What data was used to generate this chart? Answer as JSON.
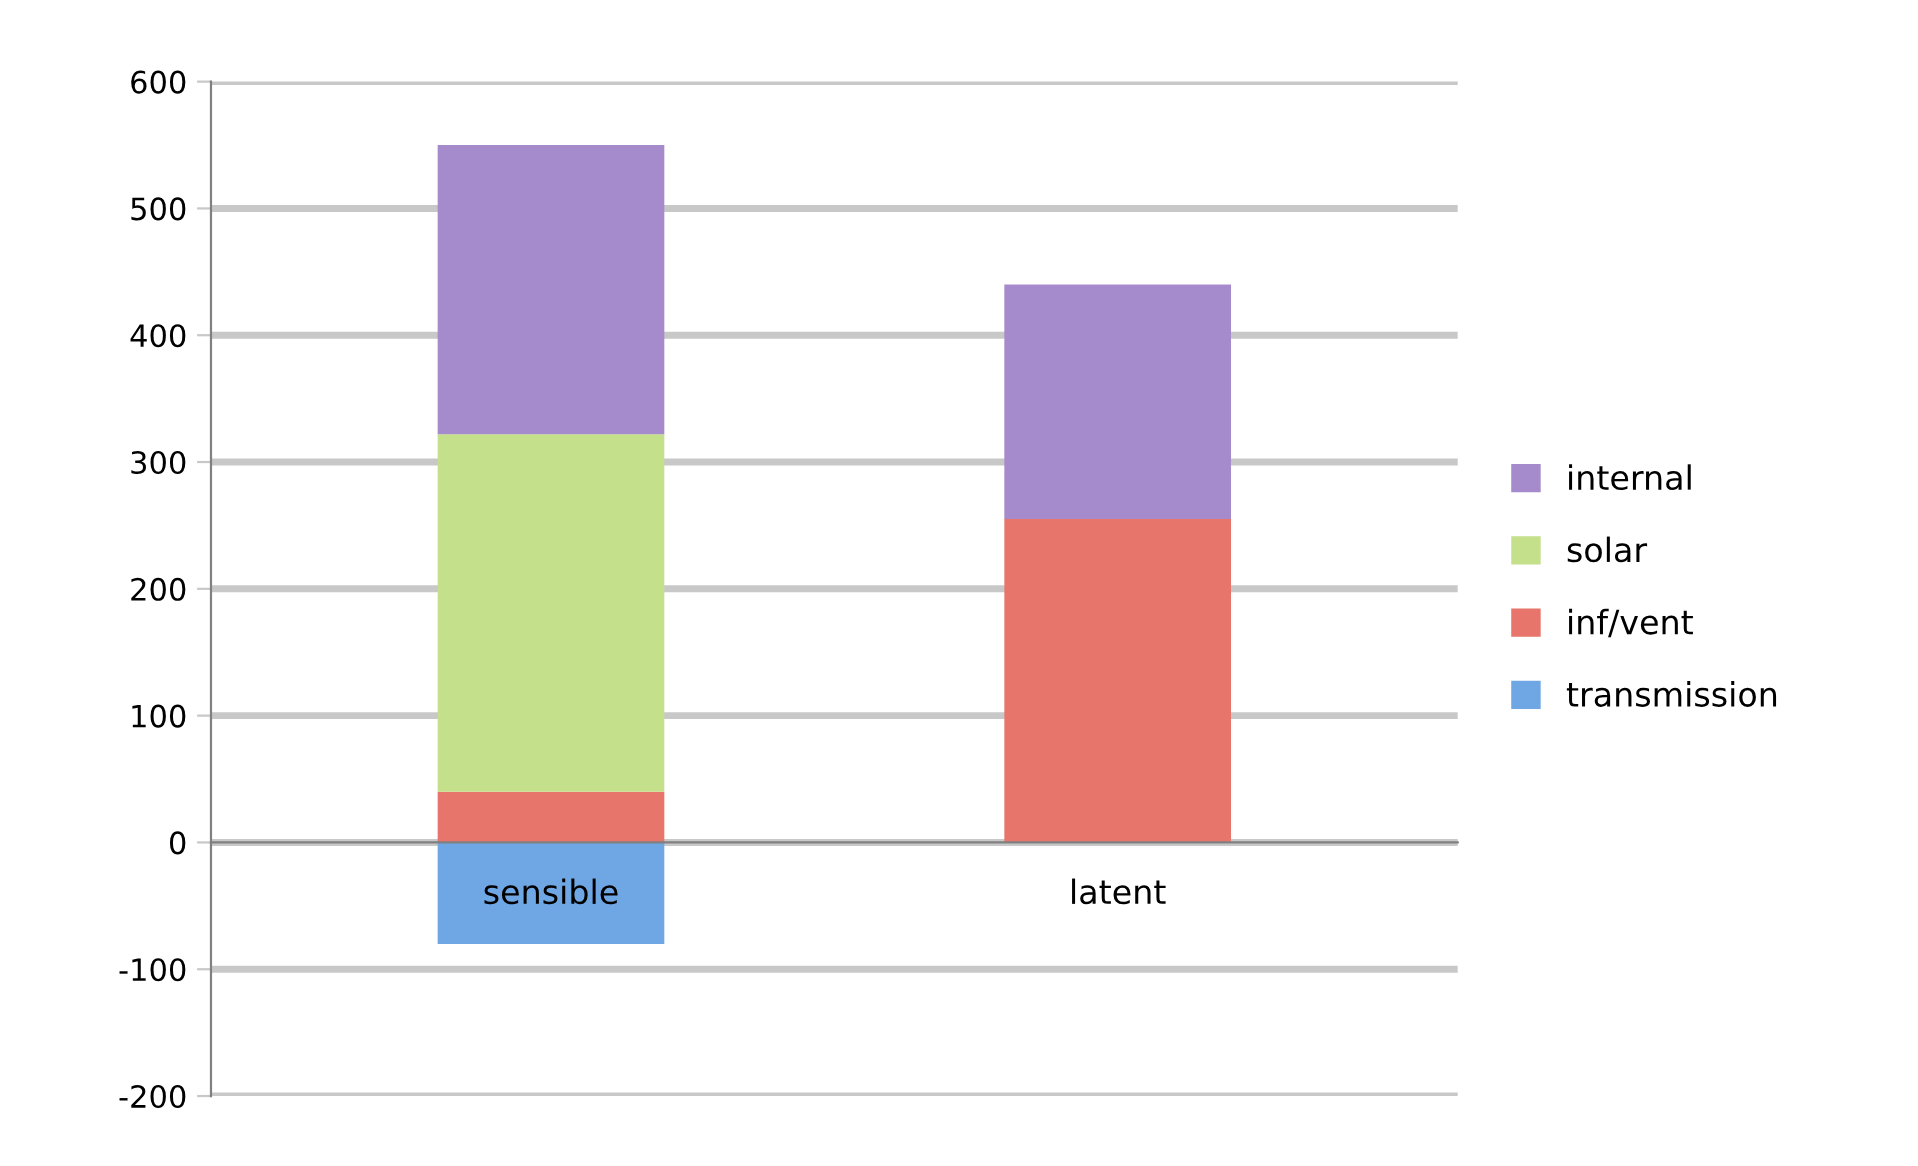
{
  "chart_data": {
    "type": "bar",
    "stacked": true,
    "categories": [
      "sensible",
      "latent"
    ],
    "series": [
      {
        "name": "transmission",
        "color": "#6fa6e4",
        "values": [
          -80,
          0
        ]
      },
      {
        "name": "inf/vent",
        "color": "#e8756b",
        "values": [
          40,
          255
        ]
      },
      {
        "name": "solar",
        "color": "#c4e08a",
        "values": [
          282,
          0
        ]
      },
      {
        "name": "internal",
        "color": "#a58bcb",
        "values": [
          228,
          185
        ]
      }
    ],
    "ylim": [
      -200,
      600
    ],
    "yticks": [
      -200,
      -100,
      0,
      100,
      200,
      300,
      400,
      500,
      600
    ],
    "grid": "y",
    "legend": "right"
  }
}
